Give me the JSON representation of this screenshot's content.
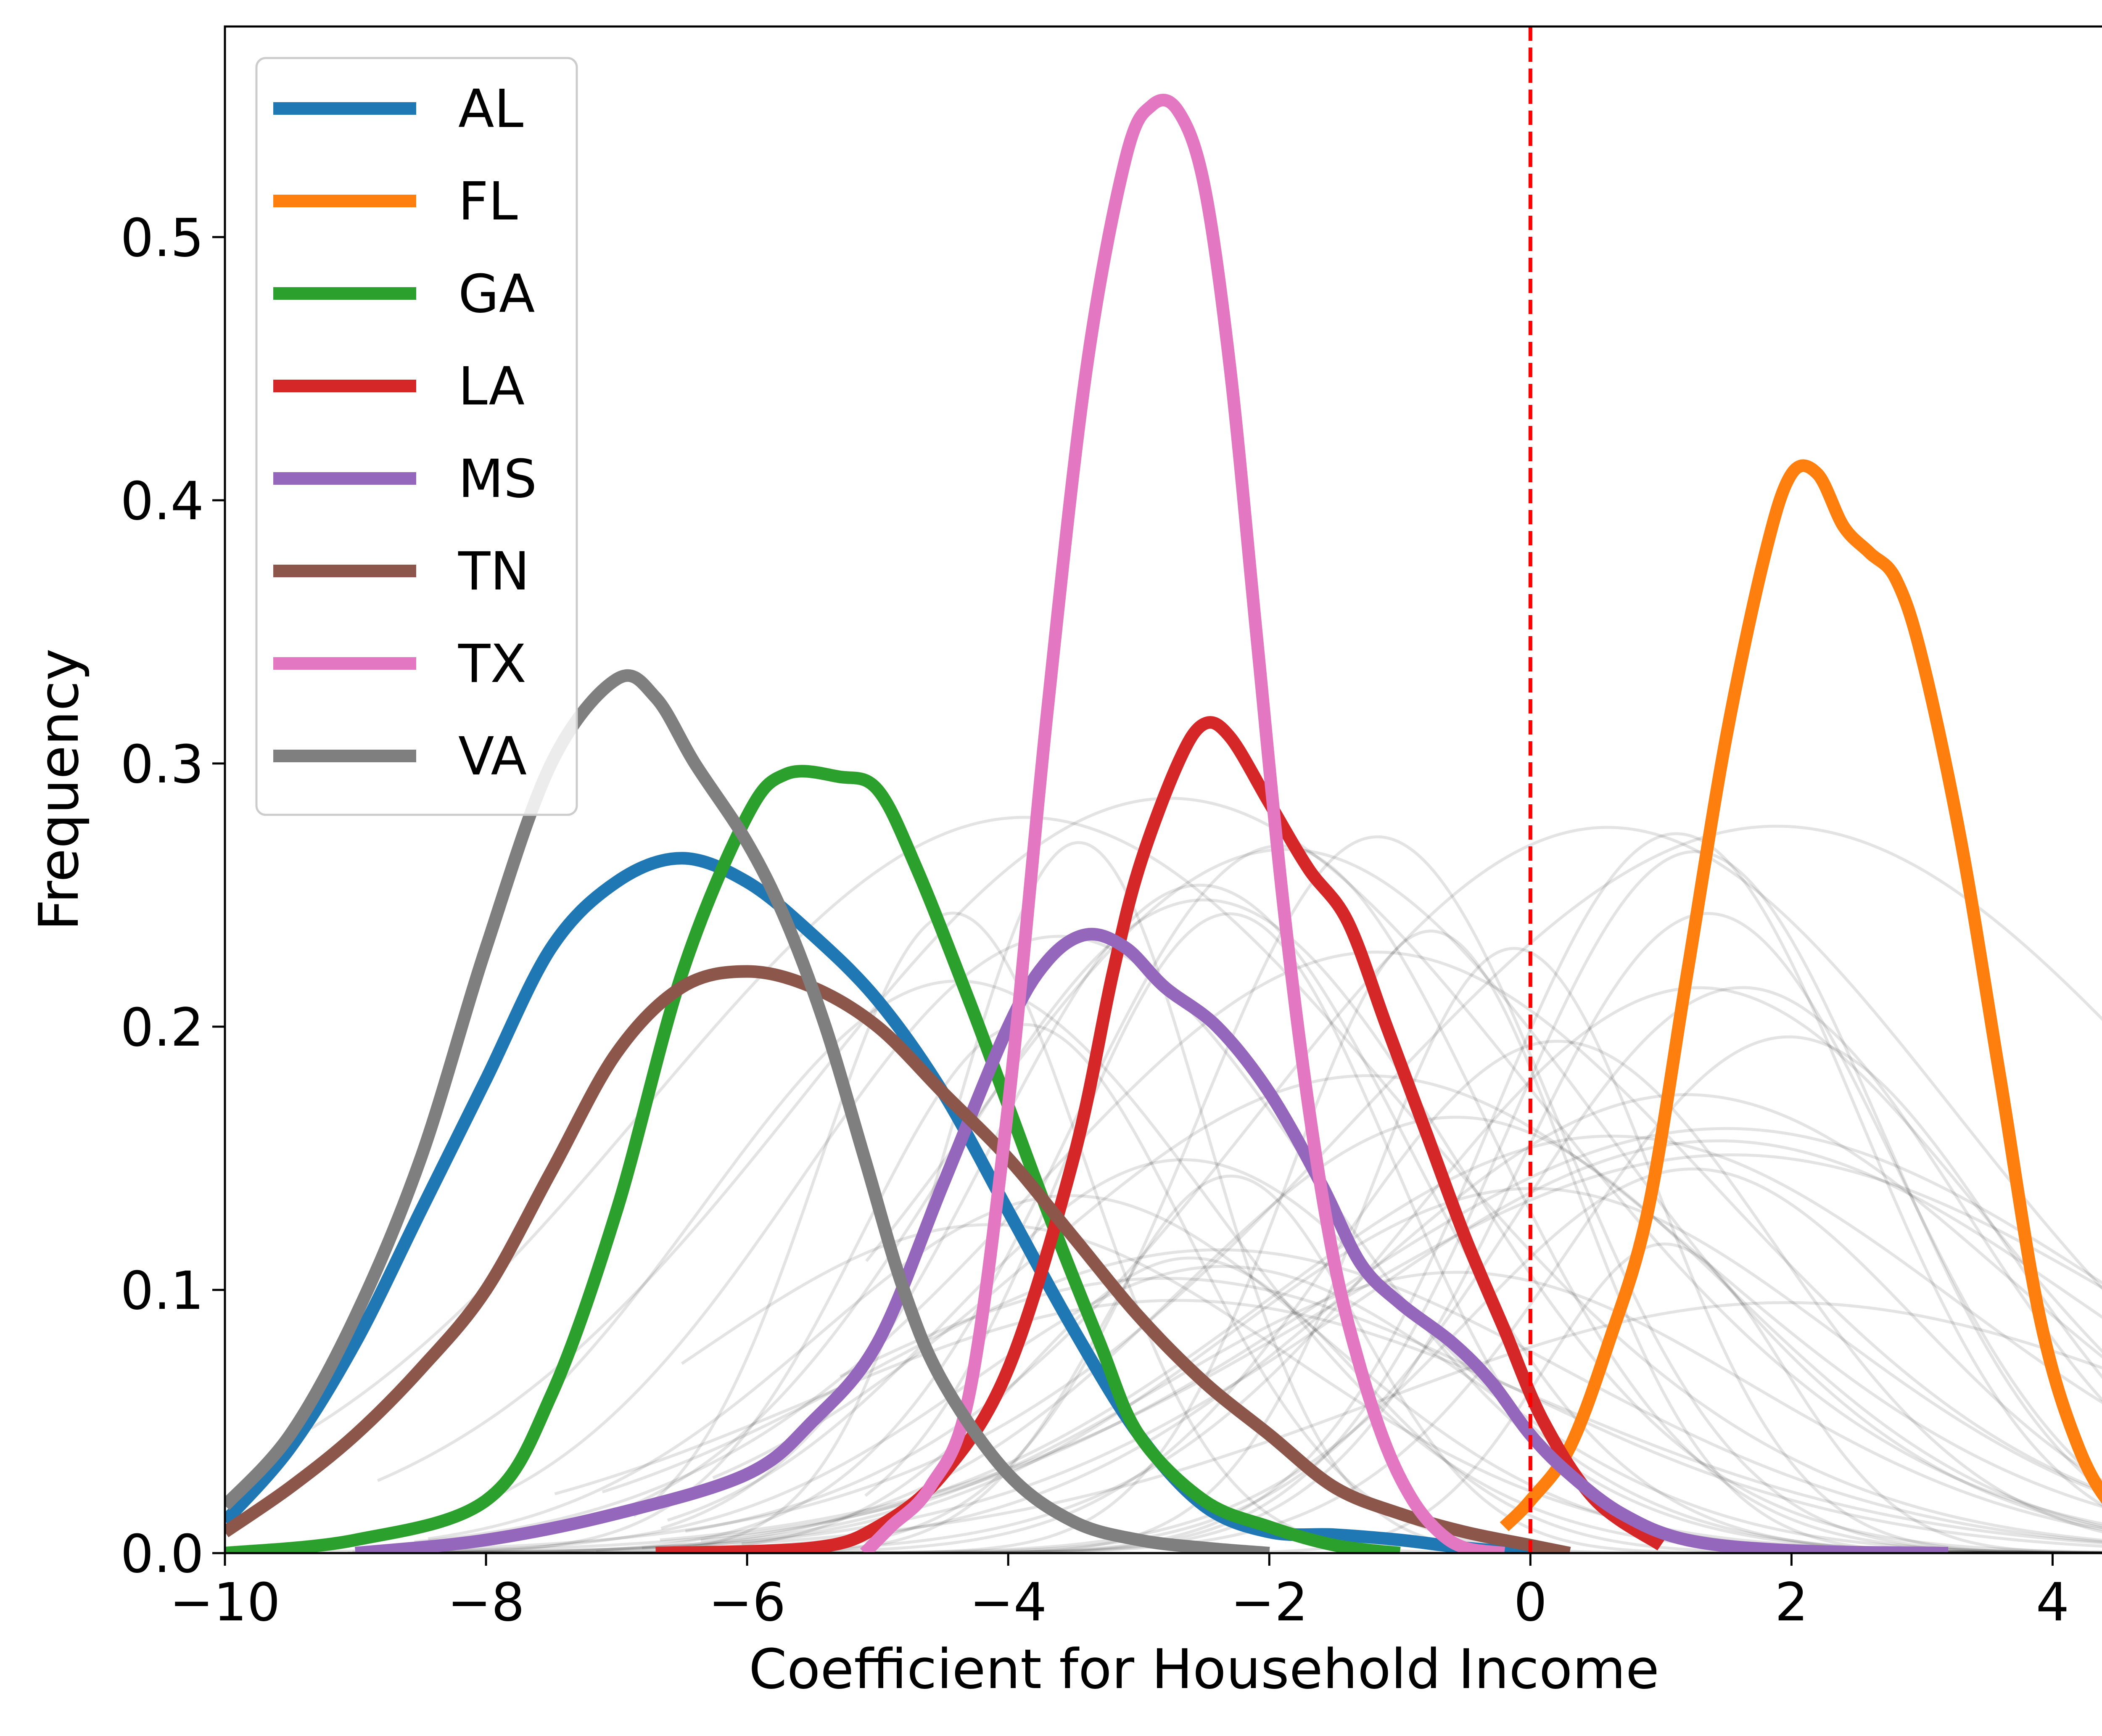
{
  "chart_data": {
    "type": "line",
    "title": "",
    "xlabel": "Coefficient for Household Income",
    "ylabel": "Frequency",
    "xlim": [
      -10,
      5
    ],
    "ylim": [
      0,
      0.58
    ],
    "x_ticks": [
      {
        "value": -10,
        "label": "−10"
      },
      {
        "value": -8,
        "label": "−8"
      },
      {
        "value": -6,
        "label": "−6"
      },
      {
        "value": -4,
        "label": "−4"
      },
      {
        "value": -2,
        "label": "−2"
      },
      {
        "value": 0,
        "label": "0"
      },
      {
        "value": 2,
        "label": "2"
      },
      {
        "value": 4,
        "label": "4"
      }
    ],
    "y_ticks": [
      {
        "value": 0,
        "label": "0.0"
      },
      {
        "value": 0.1,
        "label": "0.1"
      },
      {
        "value": 0.2,
        "label": "0.2"
      },
      {
        "value": 0.3,
        "label": "0.3"
      },
      {
        "value": 0.4,
        "label": "0.4"
      },
      {
        "value": 0.5,
        "label": "0.5"
      }
    ],
    "grid": false,
    "legend_position": "top-left",
    "reference_line": {
      "x": 0,
      "color": "#ff0000",
      "style": "dashed"
    },
    "series": [
      {
        "name": "AL",
        "color": "#1f77b4",
        "points": [
          [
            -10,
            0.012
          ],
          [
            -9.5,
            0.04
          ],
          [
            -9,
            0.08
          ],
          [
            -8.5,
            0.13
          ],
          [
            -8,
            0.18
          ],
          [
            -7.5,
            0.23
          ],
          [
            -7,
            0.255
          ],
          [
            -6.5,
            0.264
          ],
          [
            -6,
            0.255
          ],
          [
            -5.5,
            0.235
          ],
          [
            -5,
            0.21
          ],
          [
            -4.5,
            0.175
          ],
          [
            -4,
            0.13
          ],
          [
            -3.5,
            0.085
          ],
          [
            -3,
            0.045
          ],
          [
            -2.5,
            0.018
          ],
          [
            -2,
            0.008
          ],
          [
            -1.5,
            0.007
          ],
          [
            -1,
            0.005
          ],
          [
            -0.5,
            0.002
          ],
          [
            0,
            0.0
          ]
        ]
      },
      {
        "name": "FL",
        "color": "#ff7f0e",
        "points": [
          [
            -0.2,
            0.01
          ],
          [
            0,
            0.02
          ],
          [
            0.3,
            0.04
          ],
          [
            0.6,
            0.08
          ],
          [
            0.9,
            0.13
          ],
          [
            1.2,
            0.22
          ],
          [
            1.5,
            0.31
          ],
          [
            1.8,
            0.38
          ],
          [
            2,
            0.41
          ],
          [
            2.2,
            0.41
          ],
          [
            2.4,
            0.39
          ],
          [
            2.6,
            0.38
          ],
          [
            2.8,
            0.37
          ],
          [
            3.0,
            0.34
          ],
          [
            3.3,
            0.27
          ],
          [
            3.6,
            0.18
          ],
          [
            3.9,
            0.09
          ],
          [
            4.2,
            0.04
          ],
          [
            4.5,
            0.015
          ],
          [
            4.8,
            0.005
          ],
          [
            5,
            0.002
          ]
        ]
      },
      {
        "name": "GA",
        "color": "#2ca02c",
        "points": [
          [
            -10,
            0.0
          ],
          [
            -9,
            0.005
          ],
          [
            -8,
            0.02
          ],
          [
            -7.5,
            0.06
          ],
          [
            -7,
            0.13
          ],
          [
            -6.5,
            0.22
          ],
          [
            -6,
            0.28
          ],
          [
            -5.7,
            0.296
          ],
          [
            -5.3,
            0.295
          ],
          [
            -5,
            0.29
          ],
          [
            -4.7,
            0.26
          ],
          [
            -4.3,
            0.21
          ],
          [
            -4,
            0.17
          ],
          [
            -3.7,
            0.13
          ],
          [
            -3.3,
            0.08
          ],
          [
            -3,
            0.045
          ],
          [
            -2.5,
            0.02
          ],
          [
            -2,
            0.01
          ],
          [
            -1.5,
            0.003
          ],
          [
            -1,
            0.0
          ]
        ]
      },
      {
        "name": "LA",
        "color": "#d62728",
        "points": [
          [
            -6.7,
            0.0
          ],
          [
            -5.5,
            0.002
          ],
          [
            -5,
            0.01
          ],
          [
            -4.5,
            0.03
          ],
          [
            -4,
            0.07
          ],
          [
            -3.5,
            0.15
          ],
          [
            -3.2,
            0.22
          ],
          [
            -3,
            0.26
          ],
          [
            -2.7,
            0.3
          ],
          [
            -2.5,
            0.315
          ],
          [
            -2.3,
            0.31
          ],
          [
            -2,
            0.285
          ],
          [
            -1.7,
            0.26
          ],
          [
            -1.4,
            0.24
          ],
          [
            -1.1,
            0.2
          ],
          [
            -0.8,
            0.16
          ],
          [
            -0.5,
            0.12
          ],
          [
            -0.2,
            0.085
          ],
          [
            0.1,
            0.05
          ],
          [
            0.5,
            0.02
          ],
          [
            1,
            0.003
          ]
        ]
      },
      {
        "name": "MS",
        "color": "#9467bd",
        "points": [
          [
            -9,
            0.0
          ],
          [
            -8,
            0.005
          ],
          [
            -7,
            0.015
          ],
          [
            -6,
            0.03
          ],
          [
            -5.5,
            0.05
          ],
          [
            -5,
            0.08
          ],
          [
            -4.5,
            0.14
          ],
          [
            -4,
            0.2
          ],
          [
            -3.7,
            0.225
          ],
          [
            -3.4,
            0.235
          ],
          [
            -3.1,
            0.23
          ],
          [
            -2.8,
            0.215
          ],
          [
            -2.4,
            0.2
          ],
          [
            -2,
            0.175
          ],
          [
            -1.6,
            0.14
          ],
          [
            -1.3,
            0.11
          ],
          [
            -1,
            0.095
          ],
          [
            -0.6,
            0.08
          ],
          [
            -0.3,
            0.065
          ],
          [
            0,
            0.045
          ],
          [
            0.3,
            0.03
          ],
          [
            0.7,
            0.015
          ],
          [
            1.2,
            0.005
          ],
          [
            2,
            0.001
          ],
          [
            3.2,
            0.0
          ]
        ]
      },
      {
        "name": "TN",
        "color": "#8c564b",
        "points": [
          [
            -10,
            0.008
          ],
          [
            -9.5,
            0.025
          ],
          [
            -9,
            0.045
          ],
          [
            -8.5,
            0.07
          ],
          [
            -8,
            0.1
          ],
          [
            -7.5,
            0.145
          ],
          [
            -7,
            0.19
          ],
          [
            -6.5,
            0.215
          ],
          [
            -6,
            0.221
          ],
          [
            -5.5,
            0.215
          ],
          [
            -5,
            0.2
          ],
          [
            -4.5,
            0.175
          ],
          [
            -4,
            0.15
          ],
          [
            -3.5,
            0.12
          ],
          [
            -3,
            0.09
          ],
          [
            -2.5,
            0.065
          ],
          [
            -2,
            0.045
          ],
          [
            -1.5,
            0.025
          ],
          [
            -1,
            0.015
          ],
          [
            -0.5,
            0.008
          ],
          [
            0,
            0.003
          ],
          [
            0.3,
            0.0
          ]
        ]
      },
      {
        "name": "TX",
        "color": "#e377c2",
        "points": [
          [
            -5.1,
            0.0
          ],
          [
            -4.9,
            0.01
          ],
          [
            -4.6,
            0.025
          ],
          [
            -4.3,
            0.06
          ],
          [
            -4.0,
            0.17
          ],
          [
            -3.7,
            0.32
          ],
          [
            -3.4,
            0.45
          ],
          [
            -3.1,
            0.53
          ],
          [
            -2.9,
            0.55
          ],
          [
            -2.7,
            0.548
          ],
          [
            -2.5,
            0.52
          ],
          [
            -2.3,
            0.45
          ],
          [
            -2.1,
            0.35
          ],
          [
            -1.9,
            0.25
          ],
          [
            -1.7,
            0.17
          ],
          [
            -1.5,
            0.11
          ],
          [
            -1.3,
            0.07
          ],
          [
            -1.1,
            0.04
          ],
          [
            -0.9,
            0.02
          ],
          [
            -0.7,
            0.008
          ],
          [
            -0.5,
            0.002
          ],
          [
            -0.2,
            0.0
          ]
        ]
      },
      {
        "name": "VA",
        "color": "#7f7f7f",
        "points": [
          [
            -10,
            0.018
          ],
          [
            -9.5,
            0.045
          ],
          [
            -9,
            0.09
          ],
          [
            -8.5,
            0.15
          ],
          [
            -8,
            0.23
          ],
          [
            -7.5,
            0.3
          ],
          [
            -7,
            0.332
          ],
          [
            -6.7,
            0.325
          ],
          [
            -6.4,
            0.3
          ],
          [
            -6,
            0.27
          ],
          [
            -5.7,
            0.24
          ],
          [
            -5.4,
            0.2
          ],
          [
            -5.1,
            0.15
          ],
          [
            -4.8,
            0.1
          ],
          [
            -4.5,
            0.065
          ],
          [
            -4,
            0.03
          ],
          [
            -3.5,
            0.012
          ],
          [
            -3,
            0.005
          ],
          [
            -2.5,
            0.002
          ],
          [
            -2,
            0.0
          ]
        ]
      }
    ]
  }
}
